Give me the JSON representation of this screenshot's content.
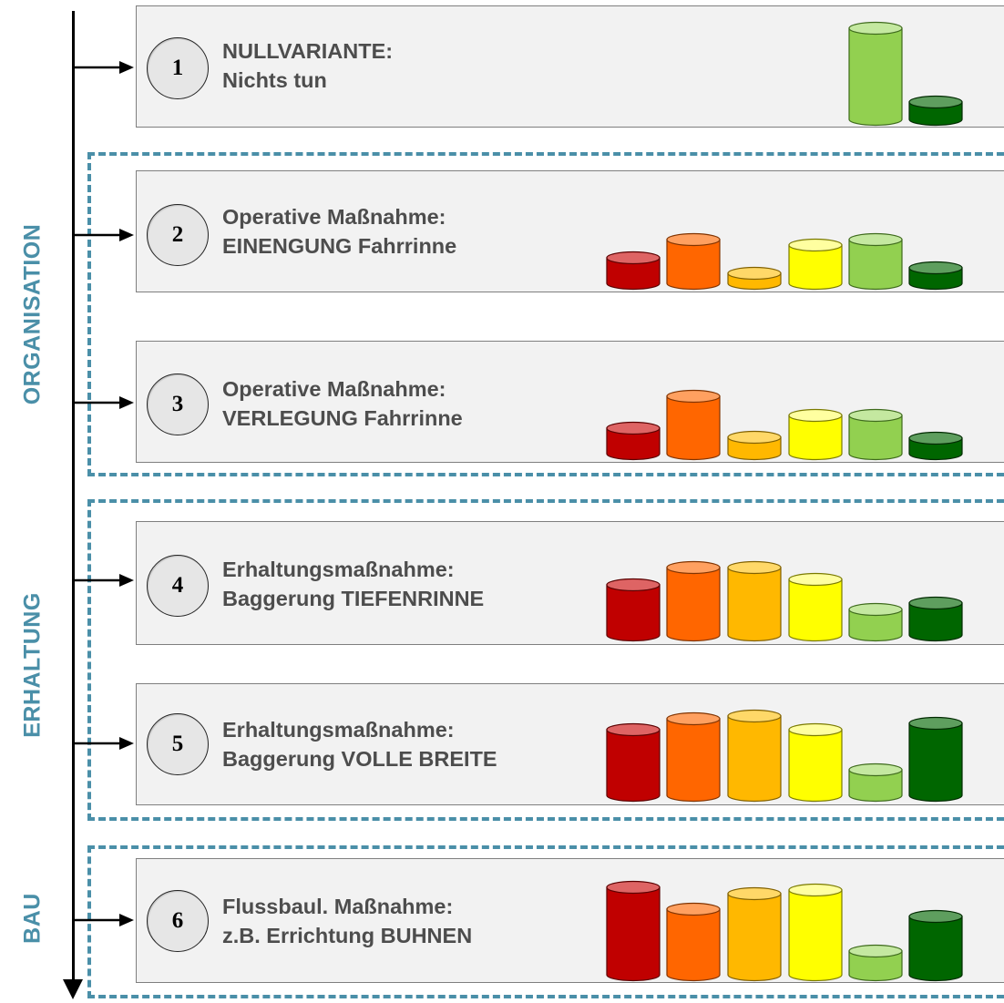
{
  "groups": [
    {
      "label": "ORGANISATION"
    },
    {
      "label": "ERHALTUNG"
    },
    {
      "label": "BAU"
    }
  ],
  "rows": [
    {
      "number": "1",
      "line1": "NULLVARIANTE:",
      "line2": "Nichts tun",
      "levels": [
        0,
        0,
        0,
        0,
        1.0,
        0.19
      ]
    },
    {
      "number": "2",
      "line1": "Operative Maßnahme:",
      "line2": "EINENGUNG Fahrrinne",
      "levels": [
        0.28,
        0.48,
        0.11,
        0.42,
        0.48,
        0.17
      ]
    },
    {
      "number": "3",
      "line1": "Operative Maßnahme:",
      "line2": "VERLEGUNG Fahrrinne",
      "levels": [
        0.28,
        0.63,
        0.18,
        0.42,
        0.42,
        0.17
      ]
    },
    {
      "number": "4",
      "line1": "Erhaltungsmaßnahme:",
      "line2": "Baggerung TIEFENRINNE",
      "levels": [
        0.55,
        0.74,
        0.74,
        0.61,
        0.28,
        0.35
      ]
    },
    {
      "number": "5",
      "line1": "Erhaltungsmaßnahme:",
      "line2": "Baggerung VOLLE BREITE",
      "levels": [
        0.72,
        0.84,
        0.87,
        0.72,
        0.28,
        0.79
      ]
    },
    {
      "number": "6",
      "line1": "Flussbaul. Maßnahme:",
      "line2": "z.B. Errichtung BUHNEN",
      "levels": [
        0.96,
        0.72,
        0.89,
        0.93,
        0.26,
        0.64
      ]
    }
  ],
  "bar_colors": [
    {
      "body": "#c00000",
      "top": "#de6464",
      "edge": "#5a0000"
    },
    {
      "body": "#ff6600",
      "top": "#ffa060",
      "edge": "#803300"
    },
    {
      "body": "#ffb800",
      "top": "#ffd868",
      "edge": "#806000"
    },
    {
      "body": "#ffff00",
      "top": "#ffffa0",
      "edge": "#7a7a00"
    },
    {
      "body": "#92d050",
      "top": "#c4e8a0",
      "edge": "#3e6a1c"
    },
    {
      "body": "#006600",
      "top": "#5e9e5e",
      "edge": "#002a00"
    }
  ]
}
